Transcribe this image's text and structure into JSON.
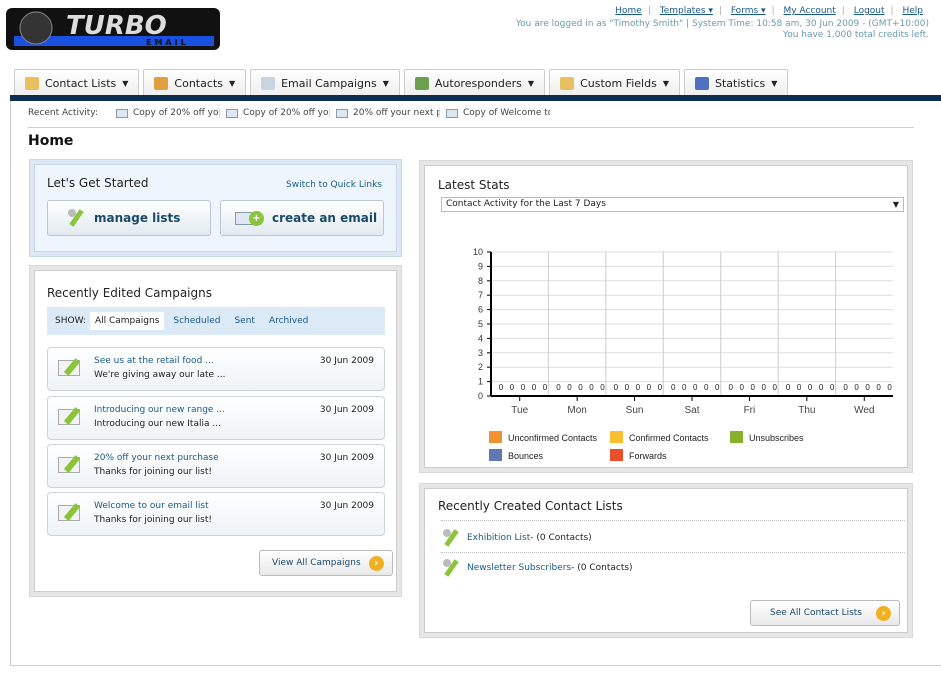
{
  "logo": {
    "text": "TURBO",
    "subtext": "EMAIL"
  },
  "top_links": [
    {
      "label": "Home"
    },
    {
      "label": "Templates ▾"
    },
    {
      "label": "Forms ▾"
    },
    {
      "label": "My Account"
    },
    {
      "label": "Logout"
    },
    {
      "label": "Help"
    }
  ],
  "user_info": "You are logged in as \"Timothy Smith\" | System Time: 10:58 am, 30 Jun 2009 - (GMT+10:00)",
  "credits": "You have 1,000 total credits left.",
  "nav": [
    {
      "label": "Contact Lists",
      "color": "#e8c060"
    },
    {
      "label": "Contacts",
      "color": "#e0a040"
    },
    {
      "label": "Email Campaigns",
      "color": "#c8d4e0"
    },
    {
      "label": "Autoresponders",
      "color": "#6aa050"
    },
    {
      "label": "Custom Fields",
      "color": "#e8c060"
    },
    {
      "label": "Statistics",
      "color": "#5070c0"
    }
  ],
  "recent_activity": {
    "label": "Recent Activity:",
    "items": [
      "Copy of 20% off yo",
      "Copy of 20% off yo",
      "20% off your next p",
      "Copy of Welcome to"
    ]
  },
  "page_title": "Home",
  "get_started": {
    "title": "Let's Get Started",
    "switch_link": "Switch to Quick Links",
    "manage_lists": "manage lists",
    "create_email": "create an email"
  },
  "campaigns": {
    "title": "Recently Edited Campaigns",
    "show_label": "SHOW:",
    "filters": [
      "All Campaigns",
      "Scheduled",
      "Sent",
      "Archived"
    ],
    "items": [
      {
        "title": "See us at the retail food ...",
        "subject": "We're giving away our late ...",
        "date": "30 Jun 2009"
      },
      {
        "title": "Introducing our new range ...",
        "subject": "Introducing our new Italia ...",
        "date": "30 Jun 2009"
      },
      {
        "title": "20% off your next purchase",
        "subject": "Thanks for joining our list!",
        "date": "30 Jun 2009"
      },
      {
        "title": "Welcome to our email list",
        "subject": "Thanks for joining our list!",
        "date": "30 Jun 2009"
      }
    ],
    "view_all": "View All Campaigns"
  },
  "stats": {
    "title": "Latest Stats",
    "dropdown": "Contact Activity for the Last 7 Days"
  },
  "chart_data": {
    "type": "bar",
    "categories": [
      "Tue",
      "Mon",
      "Sun",
      "Sat",
      "Fri",
      "Thu",
      "Wed"
    ],
    "ylim": [
      0,
      10
    ],
    "yticks": [
      0,
      1,
      2,
      3,
      4,
      5,
      6,
      7,
      8,
      9,
      10
    ],
    "grid": true,
    "legend_position": "bottom",
    "series": [
      {
        "name": "Unconfirmed Contacts",
        "color": "#f39130",
        "values": [
          0,
          0,
          0,
          0,
          0,
          0,
          0
        ]
      },
      {
        "name": "Confirmed Contacts",
        "color": "#f8c030",
        "values": [
          0,
          0,
          0,
          0,
          0,
          0,
          0
        ]
      },
      {
        "name": "Unsubscribes",
        "color": "#88b02c",
        "values": [
          0,
          0,
          0,
          0,
          0,
          0,
          0
        ]
      },
      {
        "name": "Bounces",
        "color": "#6078b0",
        "values": [
          0,
          0,
          0,
          0,
          0,
          0,
          0
        ]
      },
      {
        "name": "Forwards",
        "color": "#e8502a",
        "values": [
          0,
          0,
          0,
          0,
          0,
          0,
          0
        ]
      }
    ]
  },
  "contact_lists": {
    "title": "Recently Created Contact Lists",
    "items": [
      {
        "name": "Exhibition List",
        "count": " - (0 Contacts)"
      },
      {
        "name": "Newsletter Subscribers",
        "count": " - (0 Contacts)"
      }
    ],
    "see_all": "See All Contact Lists"
  }
}
